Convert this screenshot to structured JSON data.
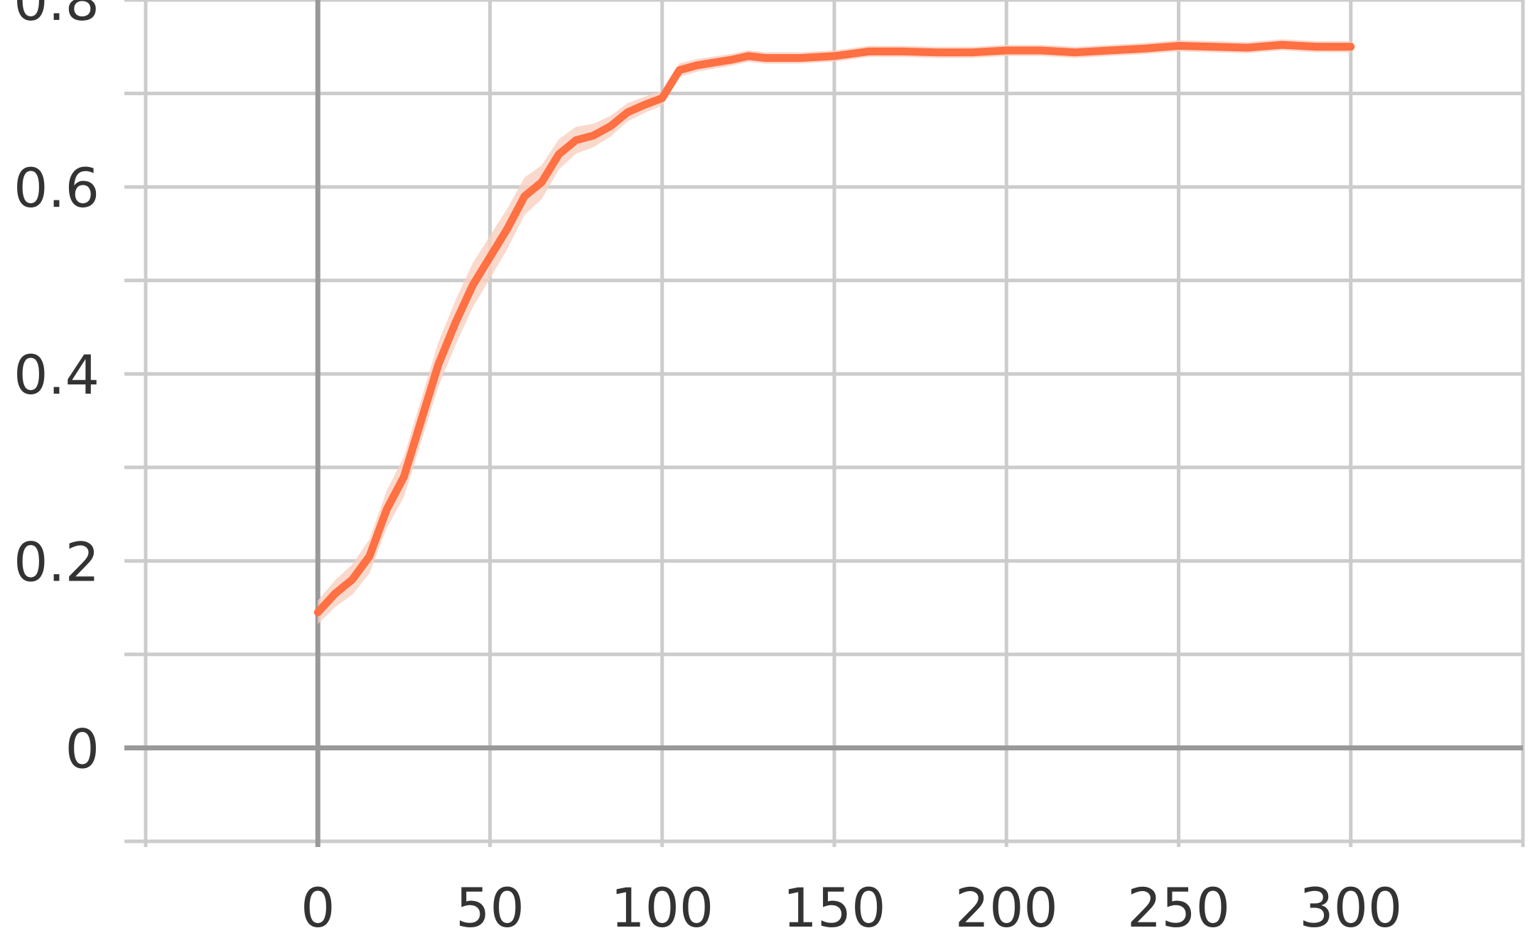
{
  "chart_data": {
    "type": "line",
    "title": "",
    "xlabel": "",
    "ylabel": "",
    "xlim": [
      -50,
      350
    ],
    "ylim": [
      -0.1,
      0.8
    ],
    "x_ticks": [
      0,
      50,
      100,
      150,
      200,
      250,
      300
    ],
    "x_tick_labels": [
      "0",
      "50",
      "100",
      "150",
      "200",
      "250",
      "300"
    ],
    "y_ticks": [
      0,
      0.2,
      0.4,
      0.6,
      0.8
    ],
    "y_tick_labels": [
      "0",
      "0.2",
      "0.4",
      "0.6",
      "0.8"
    ],
    "grid": true,
    "legend": "none",
    "series": [
      {
        "color": "#ff7043",
        "band_color": "#f9d0c0",
        "x": [
          0,
          5,
          10,
          15,
          20,
          25,
          30,
          35,
          40,
          45,
          50,
          55,
          60,
          65,
          70,
          75,
          80,
          85,
          90,
          95,
          100,
          105,
          110,
          115,
          120,
          125,
          130,
          140,
          150,
          160,
          170,
          180,
          190,
          200,
          210,
          220,
          230,
          240,
          250,
          260,
          270,
          280,
          290,
          300
        ],
        "values": [
          0.145,
          0.165,
          0.18,
          0.205,
          0.255,
          0.29,
          0.35,
          0.41,
          0.455,
          0.495,
          0.525,
          0.555,
          0.59,
          0.605,
          0.635,
          0.65,
          0.655,
          0.665,
          0.68,
          0.688,
          0.695,
          0.725,
          0.73,
          0.733,
          0.736,
          0.74,
          0.738,
          0.738,
          0.74,
          0.745,
          0.745,
          0.744,
          0.744,
          0.746,
          0.746,
          0.744,
          0.746,
          0.748,
          0.751,
          0.75,
          0.749,
          0.752,
          0.75,
          0.75
        ]
      }
    ]
  }
}
